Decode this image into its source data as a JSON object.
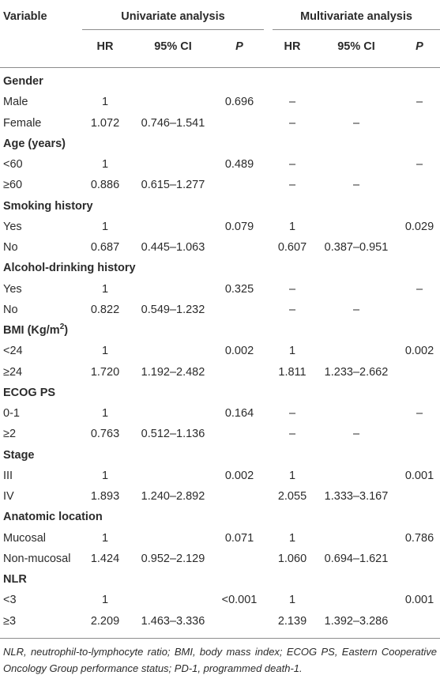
{
  "header": {
    "variable": "Variable",
    "univariate": "Univariate analysis",
    "multivariate": "Multivariate analysis",
    "hr": "HR",
    "ci": "95% CI",
    "p": "P"
  },
  "rows": [
    {
      "type": "group",
      "label": "Gender"
    },
    {
      "type": "data",
      "label": "Male",
      "uhr": "1",
      "uci": "",
      "up": "0.696",
      "mhr": "–",
      "mci": "",
      "mp": "–"
    },
    {
      "type": "data",
      "label": "Female",
      "uhr": "1.072",
      "uci": "0.746–1.541",
      "up": "",
      "mhr": "–",
      "mci": "–",
      "mp": ""
    },
    {
      "type": "group",
      "label": "Age (years)"
    },
    {
      "type": "data",
      "label": "<60",
      "uhr": "1",
      "uci": "",
      "up": "0.489",
      "mhr": "–",
      "mci": "",
      "mp": "–"
    },
    {
      "type": "data",
      "label": "≥60",
      "uhr": "0.886",
      "uci": "0.615–1.277",
      "up": "",
      "mhr": "–",
      "mci": "–",
      "mp": ""
    },
    {
      "type": "group",
      "label": "Smoking history"
    },
    {
      "type": "data",
      "label": "Yes",
      "uhr": "1",
      "uci": "",
      "up": "0.079",
      "mhr": "1",
      "mci": "",
      "mp": "0.029"
    },
    {
      "type": "data",
      "label": "No",
      "uhr": "0.687",
      "uci": "0.445–1.063",
      "up": "",
      "mhr": "0.607",
      "mci": "0.387–0.951",
      "mp": ""
    },
    {
      "type": "group",
      "label": "Alcohol-drinking history"
    },
    {
      "type": "data",
      "label": "Yes",
      "uhr": "1",
      "uci": "",
      "up": "0.325",
      "mhr": "–",
      "mci": "",
      "mp": "–"
    },
    {
      "type": "data",
      "label": "No",
      "uhr": "0.822",
      "uci": "0.549–1.232",
      "up": "",
      "mhr": "–",
      "mci": "–",
      "mp": ""
    },
    {
      "type": "group",
      "label": "BMI (Kg/m",
      "sup": "2",
      "after": ")"
    },
    {
      "type": "data",
      "label": "<24",
      "uhr": "1",
      "uci": "",
      "up": "0.002",
      "mhr": "1",
      "mci": "",
      "mp": "0.002"
    },
    {
      "type": "data",
      "label": "≥24",
      "uhr": "1.720",
      "uci": "1.192–2.482",
      "up": "",
      "mhr": "1.811",
      "mci": "1.233–2.662",
      "mp": ""
    },
    {
      "type": "group",
      "label": "ECOG PS"
    },
    {
      "type": "data",
      "label": "0-1",
      "uhr": "1",
      "uci": "",
      "up": "0.164",
      "mhr": "–",
      "mci": "",
      "mp": "–"
    },
    {
      "type": "data",
      "label": "≥2",
      "uhr": "0.763",
      "uci": "0.512–1.136",
      "up": "",
      "mhr": "–",
      "mci": "–",
      "mp": ""
    },
    {
      "type": "group",
      "label": "Stage"
    },
    {
      "type": "data",
      "label": "III",
      "uhr": "1",
      "uci": "",
      "up": "0.002",
      "mhr": "1",
      "mci": "",
      "mp": "0.001"
    },
    {
      "type": "data",
      "label": "IV",
      "uhr": "1.893",
      "uci": "1.240–2.892",
      "up": "",
      "mhr": "2.055",
      "mci": "1.333–3.167",
      "mp": ""
    },
    {
      "type": "group",
      "label": "Anatomic location"
    },
    {
      "type": "data",
      "label": "Mucosal",
      "uhr": "1",
      "uci": "",
      "up": "0.071",
      "mhr": "1",
      "mci": "",
      "mp": "0.786"
    },
    {
      "type": "data",
      "label": "Non-mucosal",
      "uhr": "1.424",
      "uci": "0.952–2.129",
      "up": "",
      "mhr": "1.060",
      "mci": "0.694–1.621",
      "mp": ""
    },
    {
      "type": "group",
      "label": "NLR"
    },
    {
      "type": "data",
      "label": "<3",
      "uhr": "1",
      "uci": "",
      "up": "<0.001",
      "mhr": "1",
      "mci": "",
      "mp": "0.001"
    },
    {
      "type": "data",
      "label": "≥3",
      "uhr": "2.209",
      "uci": "1.463–3.336",
      "up": "",
      "mhr": "2.139",
      "mci": "1.392–3.286",
      "mp": ""
    }
  ],
  "footnote": "NLR, neutrophil-to-lymphocyte ratio; BMI, body mass index; ECOG PS, Eastern Cooperative Oncology Group performance status; PD-1, programmed death-1."
}
